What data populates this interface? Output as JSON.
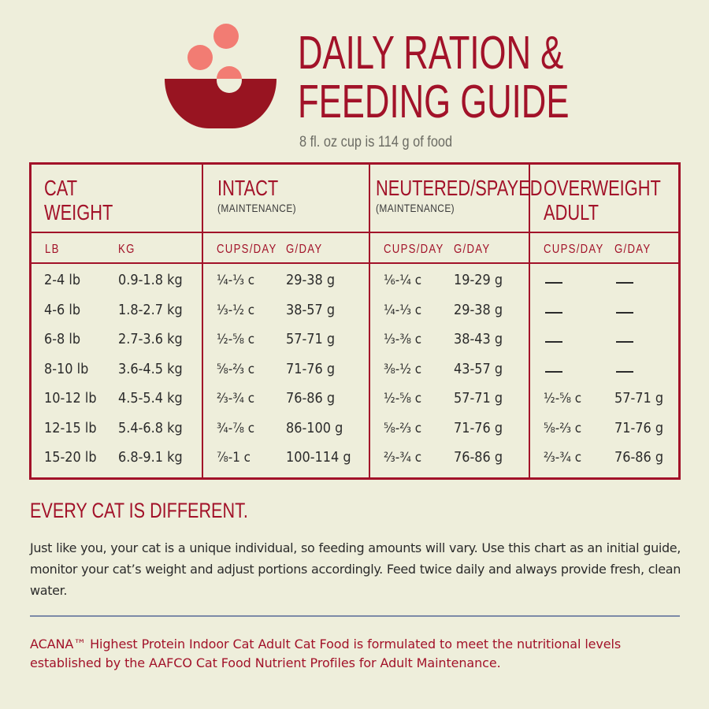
{
  "colors": {
    "background": "#eeeedb",
    "accent_red": "#a21229",
    "bowl_dark_red": "#981421",
    "kibble_salmon": "#f27c73",
    "body_text": "#2b2b2b",
    "subtitle_gray": "#6c6c64",
    "divider_blue_gray": "#7c8aa8"
  },
  "header": {
    "icon": "bowl-with-kibble-icon",
    "title_line1": "DAILY RATION &",
    "title_line2": "FEEDING GUIDE",
    "subtitle": "8 fl. oz cup is 114 g of food"
  },
  "table": {
    "groups": [
      {
        "title_line1": "CAT",
        "title_line2": "WEIGHT",
        "subtitle": ""
      },
      {
        "title_line1": "INTACT",
        "title_line2": "",
        "subtitle": "(MAINTENANCE)"
      },
      {
        "title_line1": "NEUTERED/SPAYED",
        "title_line2": "",
        "subtitle": "(MAINTENANCE)"
      },
      {
        "title_line1": "OVERWEIGHT",
        "title_line2": "ADULT",
        "subtitle": ""
      }
    ],
    "column_headers": [
      "LB",
      "KG",
      "CUPS/DAY",
      "G/DAY",
      "CUPS/DAY",
      "G/DAY",
      "CUPS/DAY",
      "G/DAY"
    ],
    "rows": [
      [
        "2-4 lb",
        "0.9-1.8 kg",
        "¼-⅓ c",
        "29-38 g",
        "⅙-¼ c",
        "19-29 g",
        "—",
        "—"
      ],
      [
        "4-6 lb",
        "1.8-2.7 kg",
        "⅓-½ c",
        "38-57 g",
        "¼-⅓ c",
        "29-38 g",
        "—",
        "—"
      ],
      [
        "6-8 lb",
        "2.7-3.6 kg",
        "½-⅝ c",
        "57-71 g",
        "⅓-⅜ c",
        "38-43 g",
        "—",
        "—"
      ],
      [
        "8-10 lb",
        "3.6-4.5 kg",
        "⅝-⅔ c",
        "71-76 g",
        "⅜-½ c",
        "43-57 g",
        "—",
        "—"
      ],
      [
        "10-12 lb",
        "4.5-5.4 kg",
        "⅔-¾ c",
        "76-86 g",
        "½-⅝ c",
        "57-71 g",
        "½-⅝ c",
        "57-71 g"
      ],
      [
        "12-15 lb",
        "5.4-6.8 kg",
        "¾-⅞ c",
        "86-100 g",
        "⅝-⅔ c",
        "71-76 g",
        "⅝-⅔ c",
        "71-76 g"
      ],
      [
        "15-20 lb",
        "6.8-9.1 kg",
        "⅞-1 c",
        "100-114 g",
        "⅔-¾ c",
        "76-86 g",
        "⅔-¾ c",
        "76-86 g"
      ]
    ]
  },
  "info": {
    "heading": "EVERY CAT IS DIFFERENT.",
    "paragraph": "Just like you, your cat is a unique individual, so feeding amounts will vary. Use this chart as an initial guide, monitor your cat’s weight and adjust portions accordingly. Feed twice daily and always provide fresh, clean water.",
    "compliance_note": "ACANA™ Highest Protein Indoor Cat Adult Cat Food is formulated to meet the nutritional levels established by the AAFCO Cat Food Nutrient Profiles for Adult Maintenance."
  }
}
